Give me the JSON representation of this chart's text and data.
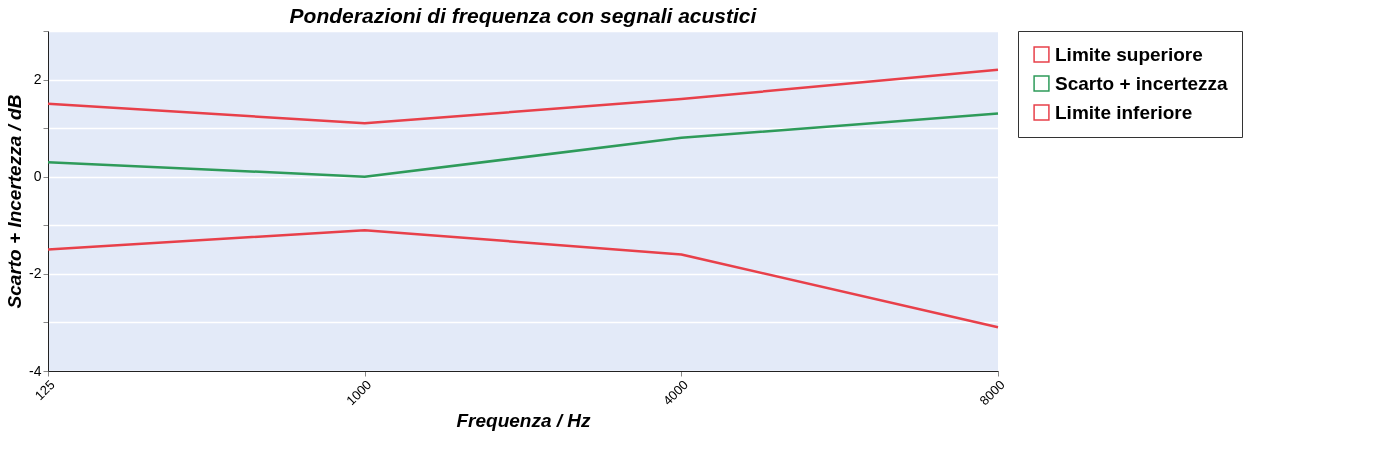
{
  "chart_data": {
    "type": "line",
    "title": "Ponderazioni di frequenza con segnali acustici",
    "xlabel": "Frequenza / Hz",
    "ylabel": "Scarto + Incertezza / dB",
    "categories": [
      "125",
      "1000",
      "4000",
      "8000"
    ],
    "series": [
      {
        "name": "Limite superiore",
        "color": "#e8404a",
        "values": [
          1.5,
          1.1,
          1.6,
          2.2
        ]
      },
      {
        "name": "Scarto + incertezza",
        "color": "#2e9b5a",
        "values": [
          0.3,
          0.0,
          0.8,
          1.3
        ]
      },
      {
        "name": "Limite inferiore",
        "color": "#e8404a",
        "values": [
          -1.5,
          -1.1,
          -1.6,
          -3.1
        ]
      }
    ],
    "ylim": [
      -4,
      3
    ],
    "yticks": [
      -4,
      {
        "value": -3,
        "label": null
      },
      -2,
      {
        "value": -1,
        "label": null
      },
      0,
      {
        "value": 1,
        "label": null
      },
      2,
      {
        "value": 3,
        "label": null
      }
    ],
    "grid": "y",
    "legend": "right",
    "marker": "none",
    "line_style": "solid"
  }
}
